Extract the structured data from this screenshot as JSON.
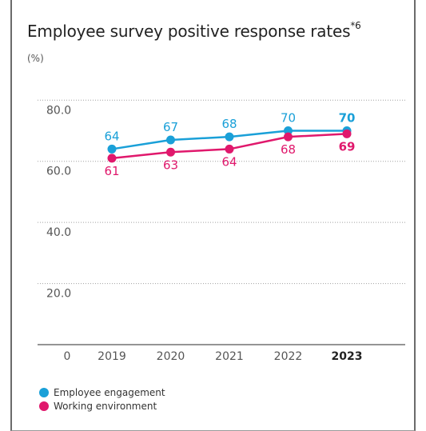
{
  "header": {
    "title": "Employee survey positive response rates",
    "title_note": "*6",
    "unit": "(%)"
  },
  "colors": {
    "engagement": "#1aa0d8",
    "environment": "#e0186c",
    "axis": "#555555",
    "grid": "#a0a0a0"
  },
  "legend": [
    {
      "label": "Employee engagement",
      "color": "#1aa0d8"
    },
    {
      "label": "Working environment",
      "color": "#e0186c"
    }
  ],
  "chart_data": {
    "type": "line",
    "title": "Employee survey positive response rates",
    "ylabel": "(%)",
    "x": [
      "2019",
      "2020",
      "2021",
      "2022",
      "2023"
    ],
    "highlight_x": "2023",
    "y_tick_labels": [
      "80.0",
      "60.0",
      "40.0",
      "20.0"
    ],
    "x_zero_label": "0",
    "ylim": [
      0,
      84
    ],
    "grid": true,
    "legend_position": "bottom-left",
    "series": [
      {
        "name": "Employee engagement",
        "values": [
          64,
          67,
          68,
          70,
          70
        ],
        "labels": [
          "64",
          "67",
          "68",
          "70",
          "70"
        ]
      },
      {
        "name": "Working environment",
        "values": [
          61,
          63,
          64,
          68,
          69
        ],
        "labels": [
          "61",
          "63",
          "64",
          "68",
          "69"
        ]
      }
    ]
  }
}
